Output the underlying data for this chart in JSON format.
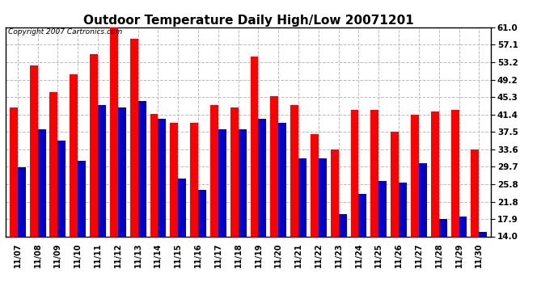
{
  "title": "Outdoor Temperature Daily High/Low 20071201",
  "copyright_text": "Copyright 2007 Cartronics.com",
  "categories": [
    "11/07",
    "11/08",
    "11/09",
    "11/10",
    "11/11",
    "11/12",
    "11/13",
    "11/14",
    "11/15",
    "11/16",
    "11/17",
    "11/18",
    "11/19",
    "11/20",
    "11/21",
    "11/22",
    "11/23",
    "11/24",
    "11/25",
    "11/26",
    "11/27",
    "11/28",
    "11/29",
    "11/30"
  ],
  "highs": [
    43.0,
    52.5,
    46.5,
    50.5,
    55.0,
    62.0,
    58.5,
    41.5,
    39.5,
    39.5,
    43.5,
    43.0,
    54.5,
    45.5,
    43.5,
    37.0,
    33.5,
    42.5,
    42.5,
    37.5,
    41.4,
    42.0,
    42.5,
    33.5
  ],
  "lows": [
    29.5,
    38.0,
    35.5,
    31.0,
    43.5,
    43.0,
    44.5,
    40.5,
    27.0,
    24.5,
    38.0,
    38.0,
    40.5,
    39.5,
    31.5,
    31.5,
    19.0,
    23.5,
    26.5,
    26.0,
    30.5,
    17.9,
    18.5,
    15.0
  ],
  "high_color": "#ff0000",
  "low_color": "#0000cc",
  "background_color": "#ffffff",
  "plot_bg_color": "#ffffff",
  "grid_color": "#bbbbbb",
  "title_fontsize": 11,
  "ymin": 14.0,
  "ymax": 61.0,
  "yticks": [
    14.0,
    17.9,
    21.8,
    25.8,
    29.7,
    33.6,
    37.5,
    41.4,
    45.3,
    49.2,
    53.2,
    57.1,
    61.0
  ]
}
